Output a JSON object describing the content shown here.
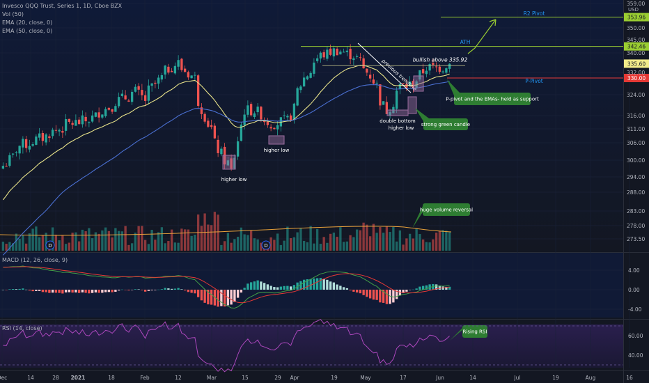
{
  "header": {
    "title": "Invesco QQQ Trust, Series 1, 1D, Cboe BZX",
    "volume_legend": "Vol (50)",
    "ema20_legend": "EMA (20, close, 0)",
    "ema50_legend": "EMA (50, close, 0)"
  },
  "currency": "USD",
  "colors": {
    "background": "#131722",
    "up": "#26a69a",
    "down": "#ef5350",
    "ema20": "#e8e38a",
    "ema50": "#4a6fd1",
    "pivot_line": "#9acd32",
    "p_pivot_line": "#e83a3a",
    "callout": "#2e7d32",
    "zone": "#9c6ea0",
    "macd": "#2196f3",
    "signal": "#ef5350",
    "rsi": "#9c27b0"
  },
  "chart_data": [
    {
      "type": "candlestick",
      "panel": "price",
      "ylim": [
        271,
        359
      ],
      "price_ticks": [
        "273.50",
        "278.00",
        "283.00",
        "288.00",
        "294.00",
        "300.00",
        "306.00",
        "311.00",
        "316.00",
        "324.00",
        "332.00",
        "340.00",
        "345.00",
        "350.00",
        "359.00"
      ],
      "time_axis": {
        "labels": [
          "Dec",
          "14",
          "28",
          "2021",
          "18",
          "Feb",
          "12",
          "Mar",
          "15",
          "29",
          "Apr",
          "19",
          "May",
          "17",
          "Jun",
          "14",
          "Jul",
          "19",
          "Aug",
          "16"
        ],
        "highlight": "2021"
      },
      "levels": [
        {
          "name": "R2 Pivot",
          "value": 353.96,
          "label": "353.96",
          "text": "R2 Pivot"
        },
        {
          "name": "ATH",
          "value": 342.46,
          "label": "342.46",
          "text": "ATH"
        },
        {
          "name": "last",
          "value": 335.6,
          "label": "335.60",
          "text": ""
        },
        {
          "name": "bullish",
          "value": 335.92,
          "label": "",
          "text": "bullish above 335.92"
        },
        {
          "name": "P-Pivot",
          "value": 330.0,
          "label": "330.00",
          "text": "P-Pivot"
        }
      ],
      "annotations": [
        {
          "id": "higher-low-1",
          "text": "higher low"
        },
        {
          "id": "higher-low-2",
          "text": "higher low"
        },
        {
          "id": "previous-trendline",
          "text": "previous trendline"
        },
        {
          "id": "double-bottom",
          "text": "double bottom"
        },
        {
          "id": "double-bottom-2",
          "text": "higher low"
        },
        {
          "id": "strong-green",
          "text": "strong green candle"
        },
        {
          "id": "p-pivot-support",
          "text": "P-pivot and the EMAs- held as support"
        },
        {
          "id": "huge-volume",
          "text": "huge volume reversal"
        },
        {
          "id": "rising-rsi",
          "text": "Rising RSI"
        }
      ],
      "dividend_markers": [
        "D",
        "D"
      ],
      "note": "Daily candles from early Dec 2020 to early Jun 2021 with EMA20 and EMA50 overlays."
    },
    {
      "type": "bar",
      "panel": "macd",
      "title": "MACD (12, 26, close, 9)",
      "ticks": [
        "4.00",
        "0.00",
        "-4.00"
      ],
      "ylim": [
        -6,
        6
      ]
    },
    {
      "type": "line",
      "panel": "rsi",
      "title": "RSI (14, close)",
      "ticks": [
        "60.00",
        "40.00"
      ],
      "ylim": [
        25,
        75
      ]
    }
  ],
  "price_series": {
    "anchors_date_close": [
      [
        "2020-12-01",
        298
      ],
      [
        "2020-12-08",
        305
      ],
      [
        "2020-12-15",
        307
      ],
      [
        "2020-12-22",
        310
      ],
      [
        "2020-12-29",
        313
      ],
      [
        "2021-01-05",
        314
      ],
      [
        "2021-01-12",
        318
      ],
      [
        "2021-01-19",
        322
      ],
      [
        "2021-01-26",
        325
      ],
      [
        "2021-01-29",
        322
      ],
      [
        "2021-02-05",
        330
      ],
      [
        "2021-02-12",
        336
      ],
      [
        "2021-02-19",
        330
      ],
      [
        "2021-02-25",
        313
      ],
      [
        "2021-03-04",
        300
      ],
      [
        "2021-03-08",
        296
      ],
      [
        "2021-03-12",
        318
      ],
      [
        "2021-03-17",
        318
      ],
      [
        "2021-03-24",
        313
      ],
      [
        "2021-03-31",
        314
      ],
      [
        "2021-04-07",
        330
      ],
      [
        "2021-04-14",
        339
      ],
      [
        "2021-04-21",
        341
      ],
      [
        "2021-04-28",
        339
      ],
      [
        "2021-05-05",
        331
      ],
      [
        "2021-05-12",
        318
      ],
      [
        "2021-05-18",
        327
      ],
      [
        "2021-05-24",
        328
      ],
      [
        "2021-05-28",
        334
      ],
      [
        "2021-06-04",
        334
      ],
      [
        "2021-06-08",
        335.6
      ]
    ]
  }
}
